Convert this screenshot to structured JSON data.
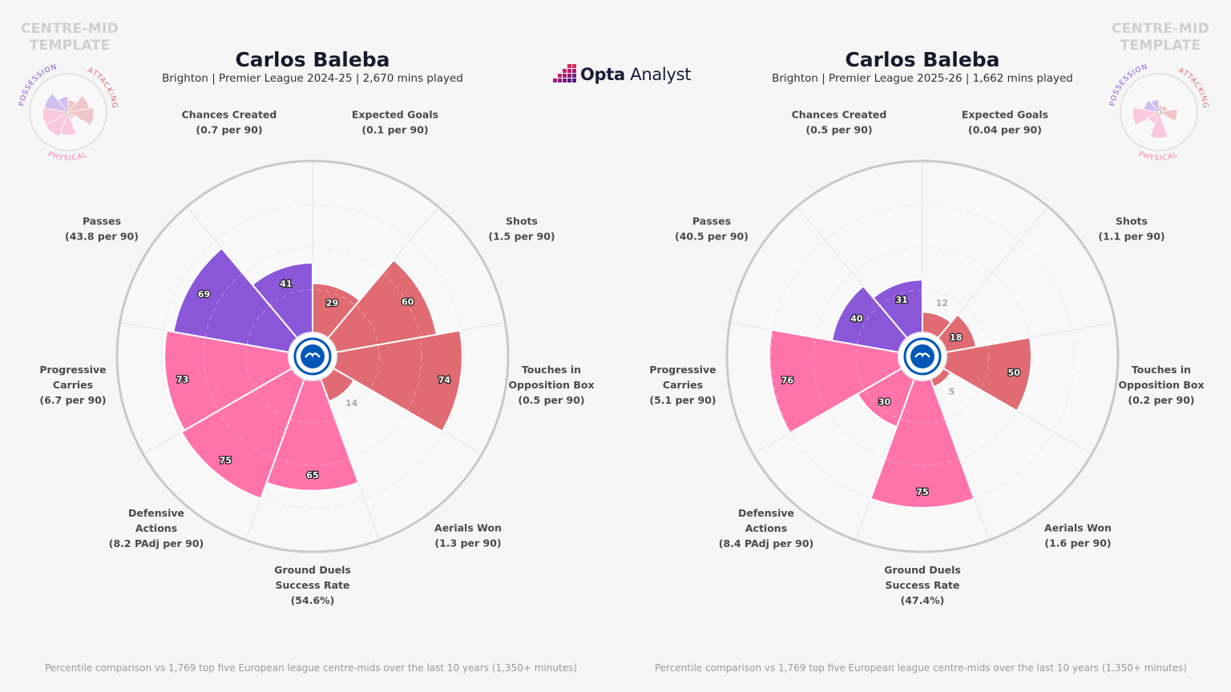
{
  "brand": {
    "name_bold": "Opta",
    "name_rest": " Analyst",
    "colors": {
      "attacking": "#e06b73",
      "possession": "#8a57d9",
      "physical": "#ff73ab",
      "background": "#f6f6f6"
    }
  },
  "template_label": [
    "CENTRE-MID",
    "TEMPLATE"
  ],
  "mini_legend": {
    "possession": "POSSESSION",
    "attacking": "ATTACKING",
    "physical": "PHYSICAL"
  },
  "footnote": "Percentile comparison vs 1,769 top five European league centre-mids over the last 10 years (1,350+ minutes)",
  "panels": [
    {
      "player": "Carlos Baleba",
      "subtitle": "Brighton | Premier League 2024-25 | 2,670 mins played",
      "metrics": [
        {
          "name": [
            "Chances Created"
          ],
          "stat": "(0.7 per 90)"
        },
        {
          "name": [
            "Expected Goals"
          ],
          "stat": "(0.1 per 90)"
        },
        {
          "name": [
            "Shots"
          ],
          "stat": "(1.5 per 90)"
        },
        {
          "name": [
            "Touches in",
            "Opposition Box"
          ],
          "stat": "(0.5 per 90)"
        },
        {
          "name": [
            "Aerials Won"
          ],
          "stat": "(1.3 per 90)"
        },
        {
          "name": [
            "Ground Duels",
            "Success Rate"
          ],
          "stat": "(54.6%)"
        },
        {
          "name": [
            "Defensive",
            "Actions"
          ],
          "stat": "(8.2 PAdj per 90)"
        },
        {
          "name": [
            "Progressive",
            "Carries"
          ],
          "stat": "(6.7 per 90)"
        },
        {
          "name": [
            "Passes"
          ],
          "stat": "(43.8 per 90)"
        }
      ]
    },
    {
      "player": "Carlos Baleba",
      "subtitle": "Brighton | Premier League 2025-26 | 1,662 mins played",
      "metrics": [
        {
          "name": [
            "Chances Created"
          ],
          "stat": "(0.5 per 90)"
        },
        {
          "name": [
            "Expected Goals"
          ],
          "stat": "(0.04 per 90)"
        },
        {
          "name": [
            "Shots"
          ],
          "stat": "(1.1 per 90)"
        },
        {
          "name": [
            "Touches in",
            "Opposition Box"
          ],
          "stat": "(0.2 per 90)"
        },
        {
          "name": [
            "Aerials Won"
          ],
          "stat": "(1.6 per 90)"
        },
        {
          "name": [
            "Ground Duels",
            "Success Rate"
          ],
          "stat": "(47.4%)"
        },
        {
          "name": [
            "Defensive",
            "Actions"
          ],
          "stat": "(8.4 PAdj per 90)"
        },
        {
          "name": [
            "Progressive",
            "Carries"
          ],
          "stat": "(5.1 per 90)"
        },
        {
          "name": [
            "Passes"
          ],
          "stat": "(40.5 per 90)"
        }
      ]
    }
  ],
  "chart_data": [
    {
      "type": "polar-bar",
      "title": "Carlos Baleba",
      "subtitle": "Brighton | Premier League 2024-25 | 2,670 mins played",
      "categories": [
        "Passes",
        "Chances Created",
        "Expected Goals",
        "Shots",
        "Touches in Opposition Box",
        "Aerials Won",
        "Ground Duels Success Rate",
        "Defensive Actions",
        "Progressive Carries"
      ],
      "groups": [
        "possession",
        "attacking",
        "attacking",
        "attacking",
        "attacking",
        "physical",
        "physical",
        "physical",
        "possession"
      ],
      "values": [
        41,
        29,
        60,
        74,
        14,
        65,
        75,
        73,
        69
      ],
      "rlim": [
        0,
        100
      ]
    },
    {
      "type": "polar-bar",
      "title": "Carlos Baleba",
      "subtitle": "Brighton | Premier League 2025-26 | 1,662 mins played",
      "categories": [
        "Passes",
        "Chances Created",
        "Expected Goals",
        "Shots",
        "Touches in Opposition Box",
        "Aerials Won",
        "Ground Duels Success Rate",
        "Defensive Actions",
        "Progressive Carries"
      ],
      "groups": [
        "possession",
        "attacking",
        "attacking",
        "attacking",
        "attacking",
        "physical",
        "physical",
        "physical",
        "possession"
      ],
      "values": [
        31,
        12,
        18,
        50,
        5,
        75,
        30,
        76,
        40
      ],
      "rlim": [
        0,
        100
      ]
    }
  ]
}
